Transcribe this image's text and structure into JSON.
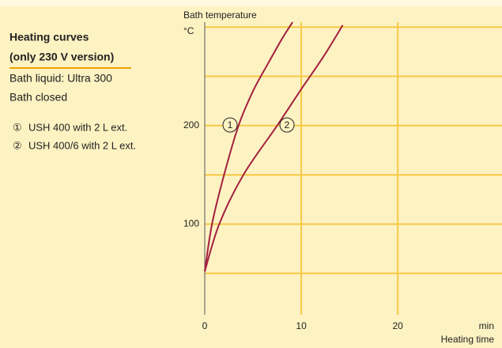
{
  "chart_data": {
    "type": "line",
    "title": "Heating curves",
    "subtitle": "(only 230 V version)",
    "notes": [
      "Bath liquid: Ultra 300",
      "Bath closed"
    ],
    "y_axis_label": "Bath temperature",
    "y_unit": "°C",
    "x_axis_label": "Heating time",
    "x_unit": "min",
    "legend_markers": [
      "①",
      "②"
    ],
    "curve_labels": [
      "1",
      "2"
    ],
    "xlim": [
      0,
      30.8
    ],
    "xticks": [
      0,
      10,
      20
    ],
    "ylim": [
      8,
      305
    ],
    "yticks": [
      100,
      200
    ],
    "minor_yticks": [
      50,
      150,
      250,
      300
    ],
    "grid": true,
    "grid_color": "#f6c945",
    "series": [
      {
        "name": "USH 400 with 2 L ext.",
        "color": "#a3203f",
        "x": [
          0,
          0.75,
          2,
          3.5,
          5,
          6.5,
          8,
          9.1
        ],
        "values": [
          52,
          100,
          150,
          200,
          235,
          262,
          288,
          305
        ]
      },
      {
        "name": "USH 400/6 with 2 L ext.",
        "color": "#a3203f",
        "x": [
          0,
          1.5,
          4,
          7.5,
          10,
          12.3,
          14.3
        ],
        "values": [
          52,
          100,
          150,
          200,
          237,
          270,
          302
        ]
      }
    ]
  }
}
